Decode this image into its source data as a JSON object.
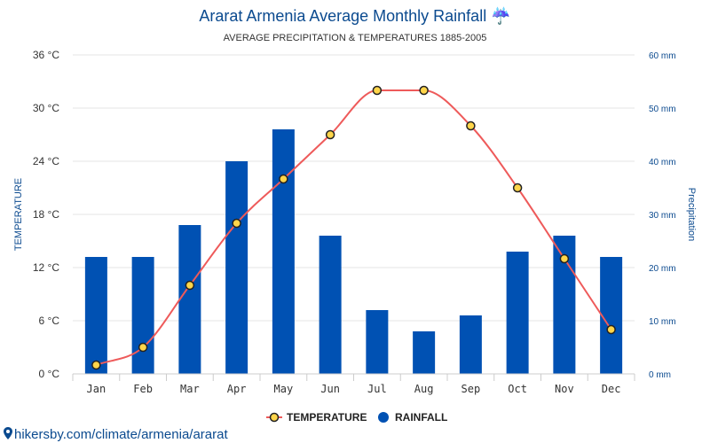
{
  "chart_data": {
    "type": "bar",
    "title": "Ararat Armenia Average Monthly Rainfall",
    "title_icon": "umbrella-rain-icon",
    "title_icon_glyph": "☔",
    "subtitle": "AVERAGE PRECIPITATION & TEMPERATURES 1885-2005",
    "categories": [
      "Jan",
      "Feb",
      "Mar",
      "Apr",
      "May",
      "Jun",
      "Jul",
      "Aug",
      "Sep",
      "Oct",
      "Nov",
      "Dec"
    ],
    "series": [
      {
        "name": "RAINFALL",
        "type": "bar",
        "axis": "right",
        "unit": "mm",
        "color": "#0051b3",
        "values": [
          22,
          22,
          28,
          40,
          46,
          26,
          12,
          8,
          11,
          23,
          26,
          22
        ]
      },
      {
        "name": "TEMPERATURE",
        "type": "line",
        "axis": "left",
        "unit": "°C",
        "color": "#ee5a5a",
        "marker_fill": "#ffd54a",
        "values": [
          1,
          3,
          10,
          17,
          22,
          27,
          32,
          32,
          28,
          21,
          13,
          5
        ]
      }
    ],
    "y_left": {
      "label": "TEMPERATURE",
      "ylim": [
        0,
        36
      ],
      "ticks": [
        0,
        6,
        12,
        18,
        24,
        30,
        36
      ],
      "tick_labels": [
        "0 °C",
        "6 °C",
        "12 °C",
        "18 °C",
        "24 °C",
        "30 °C",
        "36 °C"
      ]
    },
    "y_right": {
      "label": "Precipitation",
      "ylim": [
        0,
        60
      ],
      "ticks": [
        0,
        10,
        20,
        30,
        40,
        50,
        60
      ],
      "tick_labels": [
        "0 mm",
        "10 mm",
        "20 mm",
        "30 mm",
        "40 mm",
        "50 mm",
        "60 mm"
      ]
    },
    "grid": true,
    "legend": {
      "placement": "bottom-center",
      "items": [
        {
          "label": "TEMPERATURE",
          "kind": "line-marker"
        },
        {
          "label": "RAINFALL",
          "kind": "dot"
        }
      ]
    }
  },
  "footer": {
    "source_text": "hikersby.com/climate/armenia/ararat",
    "icon": "map-pin-icon"
  }
}
